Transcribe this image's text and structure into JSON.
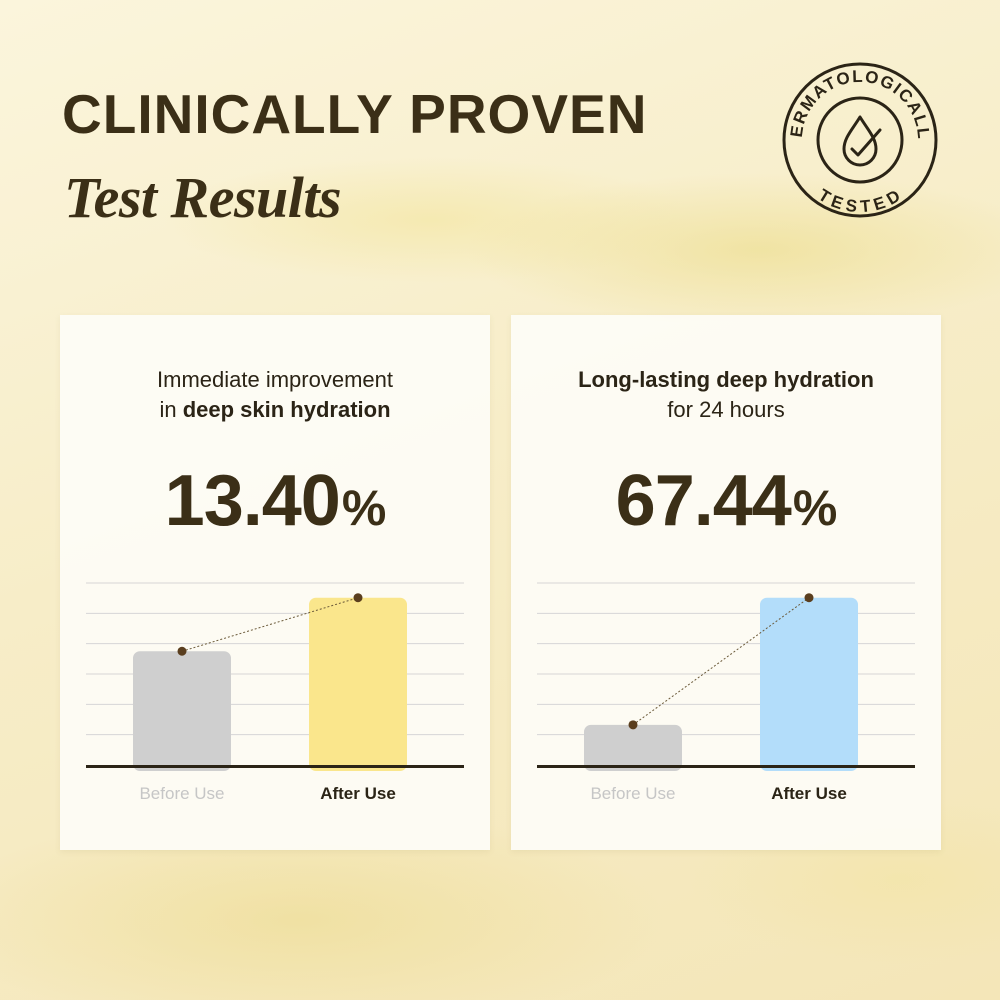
{
  "header": {
    "title": "CLINICALLY PROVEN",
    "subtitle": "Test Results"
  },
  "seal": {
    "top_text": "DERMATOLOGICALLY",
    "bottom_text": "TESTED",
    "icon": "drop-check-icon"
  },
  "colors": {
    "text_dark": "#3b2f17",
    "before_bar": "#cfcfcf",
    "after_bar_left": "#fae68c",
    "after_bar_right": "#b3ddfa",
    "label_muted": "#c6c6c6"
  },
  "cards": [
    {
      "caption_line1": "Immediate improvement",
      "caption_line2_prefix": "in ",
      "caption_line2_bold": "deep skin hydration",
      "stat_number": "13.40",
      "stat_unit": "%",
      "before_label": "Before Use",
      "after_label": "After Use"
    },
    {
      "caption_line1_bold": "Long-lasting deep hydration",
      "caption_line2": "for  24 hours",
      "stat_number": "67.44",
      "stat_unit": "%",
      "before_label": "Before Use",
      "after_label": "After Use"
    }
  ],
  "chart_data": [
    {
      "type": "bar",
      "categories": [
        "Before Use",
        "After Use"
      ],
      "values": [
        0.68,
        1.0
      ],
      "ylim": [
        0,
        1.1
      ],
      "colors": [
        "#cfcfcf",
        "#fae68c"
      ],
      "grid": true
    },
    {
      "type": "bar",
      "categories": [
        "Before Use",
        "After Use"
      ],
      "values": [
        0.24,
        1.0
      ],
      "ylim": [
        0,
        1.1
      ],
      "colors": [
        "#cfcfcf",
        "#b3ddfa"
      ],
      "grid": true
    }
  ]
}
